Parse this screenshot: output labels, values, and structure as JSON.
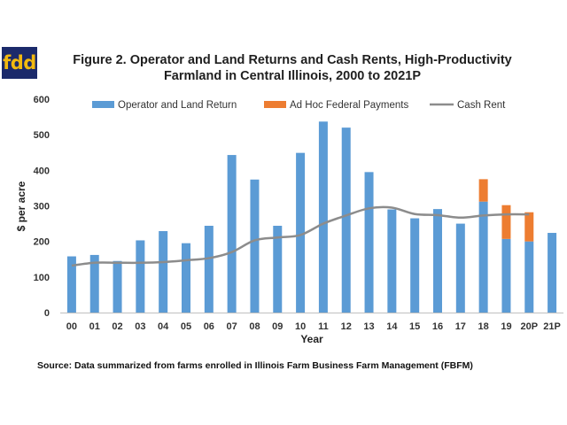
{
  "logo": {
    "text": "fdd"
  },
  "chart_data": {
    "type": "bar",
    "title_line1": "Figure 2. Operator and Land Returns and Cash Rents, High-Productivity",
    "title_line2": "Farmland in Central Illinois, 2000 to 2021P",
    "xlabel": "Year",
    "ylabel": "$ per acre",
    "ylim": [
      0,
      600
    ],
    "yticks": [
      0,
      100,
      200,
      300,
      400,
      500,
      600
    ],
    "categories": [
      "00",
      "01",
      "02",
      "03",
      "04",
      "05",
      "06",
      "07",
      "08",
      "09",
      "10",
      "11",
      "12",
      "13",
      "14",
      "15",
      "16",
      "17",
      "18",
      "19",
      "20P",
      "21P"
    ],
    "series": [
      {
        "name": "Operator and Land Return",
        "kind": "bar",
        "color": "#5b9bd5",
        "values": [
          158,
          162,
          145,
          203,
          229,
          195,
          244,
          443,
          374,
          244,
          449,
          537,
          520,
          395,
          290,
          265,
          291,
          250,
          312,
          207,
          200,
          224
        ]
      },
      {
        "name": "Ad Hoc Federal Payments",
        "kind": "stacked-bar",
        "color": "#ed7d31",
        "values": [
          0,
          0,
          0,
          0,
          0,
          0,
          0,
          0,
          0,
          0,
          0,
          0,
          0,
          0,
          0,
          0,
          0,
          0,
          63,
          95,
          82,
          0
        ]
      },
      {
        "name": "Cash Rent",
        "kind": "line",
        "color": "#8c8c8c",
        "values": [
          132,
          140,
          140,
          140,
          142,
          147,
          153,
          170,
          203,
          211,
          218,
          250,
          273,
          293,
          295,
          277,
          274,
          267,
          273,
          276,
          276,
          null
        ]
      }
    ],
    "legend_position": "top",
    "grid": false,
    "source": "Source:  Data summarized from farms enrolled in Illinois Farm Business Farm Management (FBFM)"
  }
}
